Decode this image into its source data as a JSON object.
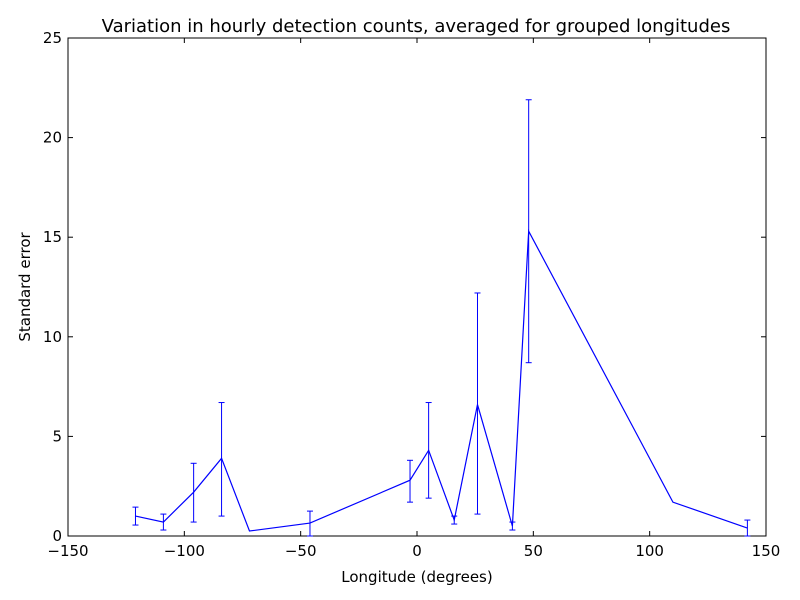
{
  "chart_data": {
    "type": "line",
    "title": "Variation in hourly detection counts, averaged for grouped longitudes",
    "xlabel": "Longitude (degrees)",
    "ylabel": "Standard error",
    "xlim": [
      -150,
      150
    ],
    "ylim": [
      0,
      25
    ],
    "xticks": [
      -150,
      -100,
      -50,
      0,
      50,
      100,
      150
    ],
    "yticks": [
      0,
      5,
      10,
      15,
      20,
      25
    ],
    "grid": false,
    "series_color": "#0000ff",
    "x": [
      -121,
      -109,
      -96,
      -84,
      -72,
      -46,
      -3,
      5,
      16,
      26,
      41,
      48,
      110,
      142
    ],
    "y": [
      1.0,
      0.7,
      2.2,
      3.9,
      0.25,
      0.65,
      2.8,
      4.3,
      0.8,
      6.6,
      0.5,
      15.3,
      1.7,
      0.4
    ],
    "yerr_low": [
      0.55,
      0.3,
      0.7,
      1.0,
      null,
      0.0,
      1.7,
      1.9,
      0.6,
      1.1,
      0.3,
      8.7,
      null,
      0.0
    ],
    "yerr_high": [
      1.45,
      1.1,
      3.65,
      6.7,
      null,
      1.25,
      3.8,
      6.7,
      1.0,
      12.2,
      0.7,
      21.9,
      null,
      0.8
    ]
  }
}
